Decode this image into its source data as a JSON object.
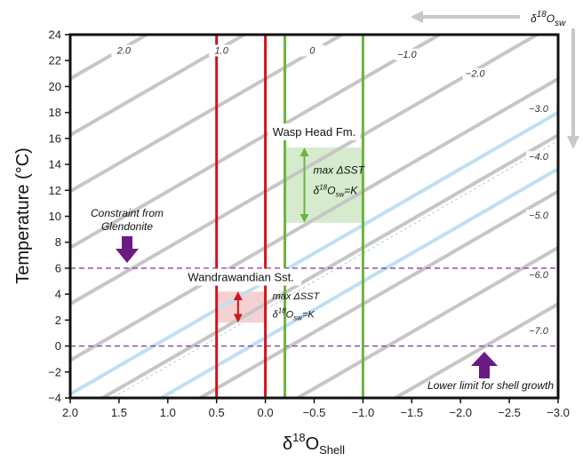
{
  "chart_data": {
    "type": "line",
    "xlabel_main": "δ",
    "xlabel_sup": "18",
    "xlabel_sub": "O",
    "xlabel_subsub": "Shell",
    "ylabel": "Temperature (°C)",
    "xlim": [
      2.0,
      -3.0
    ],
    "ylim": [
      -4,
      24
    ],
    "x_ticks": [
      "2.0",
      "1.5",
      "1.0",
      "0.5",
      "0.0",
      "−0.5",
      "−1.0",
      "−1.5",
      "−2.0",
      "−2.5",
      "−3.0"
    ],
    "x_tick_values": [
      2.0,
      1.5,
      1.0,
      0.5,
      0.0,
      -0.5,
      -1.0,
      -1.5,
      -2.0,
      -2.5,
      -3.0
    ],
    "y_ticks": [
      "−4",
      "−2",
      "0",
      "2",
      "4",
      "6",
      "8",
      "10",
      "12",
      "14",
      "16",
      "18",
      "20",
      "22",
      "24"
    ],
    "y_tick_values": [
      -4,
      -2,
      0,
      2,
      4,
      6,
      8,
      10,
      12,
      14,
      16,
      18,
      20,
      22,
      24
    ],
    "isolines": [
      {
        "label": "2.0",
        "d18o_sw": 2.0,
        "label_x": 1.45,
        "label_y": 22.6
      },
      {
        "label": "1.0",
        "d18o_sw": 1.0,
        "label_x": 0.45,
        "label_y": 22.6
      },
      {
        "label": "0",
        "d18o_sw": 0.0,
        "label_x": -0.48,
        "label_y": 22.6
      },
      {
        "label": "−1.0",
        "d18o_sw": -1.0,
        "label_x": -1.45,
        "label_y": 22.3
      },
      {
        "label": "−2.0",
        "d18o_sw": -2.0,
        "label_x": -2.15,
        "label_y": 20.8
      },
      {
        "label": "−3.0",
        "d18o_sw": -3.0,
        "label_x": -2.8,
        "label_y": 18.1
      },
      {
        "label": "−4.0",
        "d18o_sw": -4.0,
        "label_x": -2.8,
        "label_y": 14.4
      },
      {
        "label": "−5.0",
        "d18o_sw": -5.0,
        "label_x": -2.8,
        "label_y": 9.9
      },
      {
        "label": "−6.0",
        "d18o_sw": -6.0,
        "label_x": -2.8,
        "label_y": 5.3
      },
      {
        "label": "−7.0",
        "d18o_sw": -7.0,
        "label_x": -2.8,
        "label_y": 1.0
      }
    ],
    "blue_lines": [
      -3.6,
      -4.6
    ],
    "blue_dotted": -4.1,
    "red_vlines": [
      0.5,
      0.0
    ],
    "green_vlines": [
      -0.2,
      -1.0
    ],
    "hlines_dashed": [
      6,
      0
    ],
    "boxes": [
      {
        "name": "Wasp Head Fm.",
        "x0": -0.2,
        "x1": -1.0,
        "y0": 9.5,
        "y1": 15.3,
        "color": "#cfe8c6",
        "arrow_color": "#6db33f",
        "arrow_x": -0.4,
        "label_x": -0.5,
        "label_y": 16.2
      },
      {
        "name": "Wandrawandian Sst.",
        "x0": 0.5,
        "x1": 0.0,
        "y0": 1.8,
        "y1": 4.2,
        "color": "#f6c9c9",
        "arrow_color": "#d0141b",
        "arrow_x": 0.28,
        "label_x": 0.25,
        "label_y": 5.0
      }
    ],
    "box_note": {
      "line1": "max ΔSST",
      "line2_main": "δ",
      "line2_sup": "18",
      "line2_sub": "O",
      "line2_subsub": "sw",
      "line2_end": "=K"
    },
    "text_annotations": {
      "glendonite_line1": "Constraint from",
      "glendonite_line2": "Glendonite",
      "lower_limit": "Lower limit for shell growth"
    },
    "legend_arrow": {
      "main": "δ",
      "sup": "18",
      "sub": "O",
      "subsub": "sw"
    }
  }
}
